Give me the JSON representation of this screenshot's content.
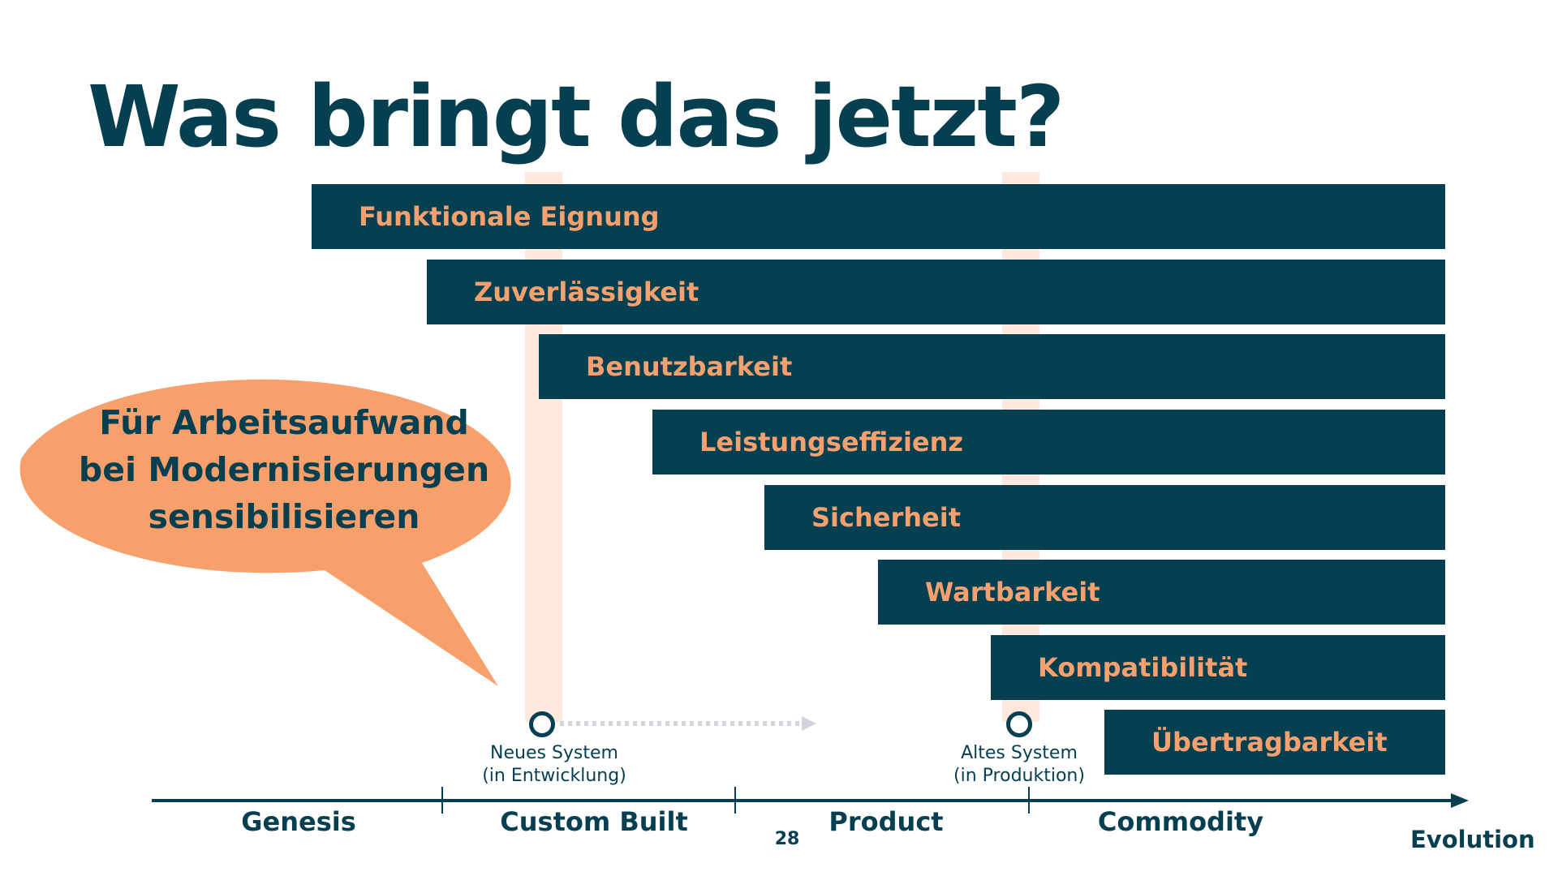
{
  "title": "Was bringt das jetzt?",
  "bars": [
    {
      "label": "Funktionale Eignung"
    },
    {
      "label": "Zuverlässigkeit"
    },
    {
      "label": "Benutzbarkeit"
    },
    {
      "label": "Leistungseffizienz"
    },
    {
      "label": "Sicherheit"
    },
    {
      "label": "Wartbarkeit"
    },
    {
      "label": "Kompatibilität"
    },
    {
      "label": "Übertragbarkeit"
    }
  ],
  "callout": {
    "lines": [
      "Für Arbeitsaufwand",
      "bei Modernisierungen",
      "sensibilisieren"
    ]
  },
  "markers": {
    "new_system": {
      "line1": "Neues System",
      "line2": "(in Entwicklung)"
    },
    "old_system": {
      "line1": "Altes System",
      "line2": "(in Produktion)"
    }
  },
  "axis": {
    "label": "Evolution",
    "stages": [
      "Genesis",
      "Custom Built",
      "Product",
      "Commodity"
    ]
  },
  "page_number": "28",
  "colors": {
    "navy": "#053f50",
    "orange": "#f7a06c",
    "stripe": "#ffe9df",
    "dotted_arrow": "#d4d4dc"
  }
}
